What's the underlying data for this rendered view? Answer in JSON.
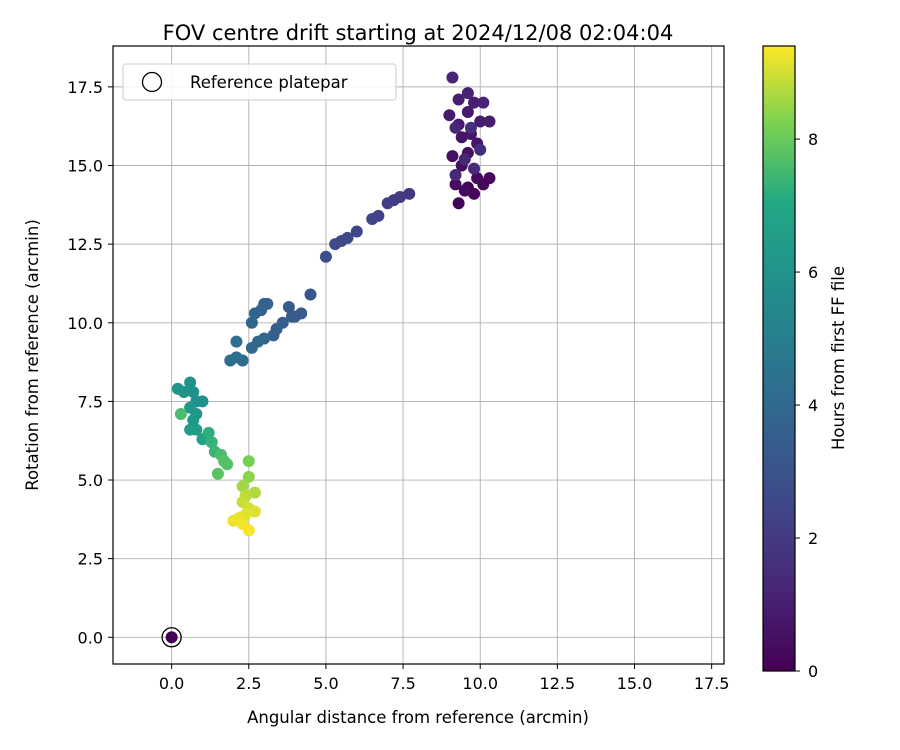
{
  "chart_data": {
    "type": "scatter",
    "title": "FOV centre drift starting at 2024/12/08 02:04:04",
    "xlabel": "Angular distance from reference (arcmin)",
    "ylabel": "Rotation from reference (arcmin)",
    "xlim": [
      -1.9,
      17.9
    ],
    "ylim": [
      -0.85,
      18.8
    ],
    "xticks": [
      0.0,
      2.5,
      5.0,
      7.5,
      10.0,
      12.5,
      15.0,
      17.5
    ],
    "xtick_labels": [
      "0.0",
      "2.5",
      "5.0",
      "7.5",
      "10.0",
      "12.5",
      "15.0",
      "17.5"
    ],
    "yticks": [
      0.0,
      2.5,
      5.0,
      7.5,
      10.0,
      12.5,
      15.0,
      17.5
    ],
    "ytick_labels": [
      "0.0",
      "2.5",
      "5.0",
      "7.5",
      "10.0",
      "12.5",
      "15.0",
      "17.5"
    ],
    "grid": true,
    "legend": {
      "position": "top-left",
      "entries": [
        {
          "label": "Reference platepar",
          "marker": "open-circle"
        }
      ]
    },
    "colorbar": {
      "label": "Hours from first FF file",
      "colormap": "viridis",
      "range": [
        0,
        9.4
      ],
      "ticks": [
        0,
        2,
        4,
        6,
        8
      ],
      "tick_labels": [
        "0",
        "2",
        "4",
        "6",
        "8"
      ]
    },
    "reference_point": {
      "x": 0.0,
      "y": 0.0,
      "hours": 0.0
    },
    "points": [
      {
        "x": 9.6,
        "y": 14.3,
        "h": 0.05
      },
      {
        "x": 9.3,
        "y": 13.8,
        "h": 0.1
      },
      {
        "x": 9.8,
        "y": 14.1,
        "h": 0.15
      },
      {
        "x": 10.1,
        "y": 14.4,
        "h": 0.2
      },
      {
        "x": 10.3,
        "y": 14.6,
        "h": 0.25
      },
      {
        "x": 9.9,
        "y": 14.6,
        "h": 0.3
      },
      {
        "x": 9.5,
        "y": 14.2,
        "h": 0.35
      },
      {
        "x": 9.2,
        "y": 14.4,
        "h": 0.4
      },
      {
        "x": 9.4,
        "y": 15.0,
        "h": 0.45
      },
      {
        "x": 9.1,
        "y": 15.3,
        "h": 0.5
      },
      {
        "x": 9.6,
        "y": 15.4,
        "h": 0.55
      },
      {
        "x": 9.4,
        "y": 15.9,
        "h": 0.6
      },
      {
        "x": 9.9,
        "y": 15.7,
        "h": 0.65
      },
      {
        "x": 9.7,
        "y": 16.0,
        "h": 0.7
      },
      {
        "x": 9.3,
        "y": 16.3,
        "h": 0.75
      },
      {
        "x": 9.0,
        "y": 16.6,
        "h": 0.8
      },
      {
        "x": 9.6,
        "y": 16.7,
        "h": 0.85
      },
      {
        "x": 10.0,
        "y": 16.4,
        "h": 0.9
      },
      {
        "x": 10.3,
        "y": 16.4,
        "h": 0.95
      },
      {
        "x": 9.8,
        "y": 17.0,
        "h": 1.0
      },
      {
        "x": 9.3,
        "y": 17.1,
        "h": 1.05
      },
      {
        "x": 9.6,
        "y": 17.3,
        "h": 1.1
      },
      {
        "x": 10.1,
        "y": 17.0,
        "h": 1.15
      },
      {
        "x": 9.1,
        "y": 17.8,
        "h": 1.2
      },
      {
        "x": 9.2,
        "y": 16.2,
        "h": 1.25
      },
      {
        "x": 9.5,
        "y": 15.2,
        "h": 1.3
      },
      {
        "x": 9.2,
        "y": 14.7,
        "h": 1.35
      },
      {
        "x": 9.8,
        "y": 14.9,
        "h": 1.4
      },
      {
        "x": 10.0,
        "y": 15.5,
        "h": 1.5
      },
      {
        "x": 9.7,
        "y": 16.2,
        "h": 1.55
      },
      {
        "x": 7.7,
        "y": 14.1,
        "h": 1.9
      },
      {
        "x": 7.4,
        "y": 14.0,
        "h": 2.0
      },
      {
        "x": 7.2,
        "y": 13.9,
        "h": 2.1
      },
      {
        "x": 7.0,
        "y": 13.8,
        "h": 2.15
      },
      {
        "x": 6.7,
        "y": 13.4,
        "h": 2.3
      },
      {
        "x": 6.5,
        "y": 13.3,
        "h": 2.35
      },
      {
        "x": 6.0,
        "y": 12.9,
        "h": 2.5
      },
      {
        "x": 5.7,
        "y": 12.7,
        "h": 2.6
      },
      {
        "x": 5.5,
        "y": 12.6,
        "h": 2.65
      },
      {
        "x": 5.3,
        "y": 12.5,
        "h": 2.7
      },
      {
        "x": 5.0,
        "y": 12.1,
        "h": 2.85
      },
      {
        "x": 4.5,
        "y": 10.9,
        "h": 3.1
      },
      {
        "x": 4.2,
        "y": 10.3,
        "h": 3.25
      },
      {
        "x": 4.0,
        "y": 10.2,
        "h": 3.3
      },
      {
        "x": 3.8,
        "y": 10.5,
        "h": 3.35
      },
      {
        "x": 3.9,
        "y": 10.2,
        "h": 3.4
      },
      {
        "x": 3.6,
        "y": 10.0,
        "h": 3.45
      },
      {
        "x": 3.4,
        "y": 9.8,
        "h": 3.5
      },
      {
        "x": 3.3,
        "y": 9.6,
        "h": 3.55
      },
      {
        "x": 3.1,
        "y": 10.6,
        "h": 3.65
      },
      {
        "x": 3.0,
        "y": 10.6,
        "h": 3.7
      },
      {
        "x": 2.9,
        "y": 10.4,
        "h": 3.75
      },
      {
        "x": 2.7,
        "y": 10.3,
        "h": 3.8
      },
      {
        "x": 2.6,
        "y": 10.0,
        "h": 3.85
      },
      {
        "x": 3.0,
        "y": 9.5,
        "h": 3.9
      },
      {
        "x": 2.8,
        "y": 9.4,
        "h": 3.95
      },
      {
        "x": 2.6,
        "y": 9.2,
        "h": 4.0
      },
      {
        "x": 2.3,
        "y": 8.8,
        "h": 4.1
      },
      {
        "x": 2.1,
        "y": 8.9,
        "h": 4.15
      },
      {
        "x": 1.9,
        "y": 8.8,
        "h": 4.2
      },
      {
        "x": 2.1,
        "y": 9.4,
        "h": 4.25
      },
      {
        "x": 0.8,
        "y": 7.5,
        "h": 5.8
      },
      {
        "x": 1.0,
        "y": 7.5,
        "h": 5.85
      },
      {
        "x": 0.7,
        "y": 7.8,
        "h": 5.9
      },
      {
        "x": 0.6,
        "y": 8.1,
        "h": 5.95
      },
      {
        "x": 0.4,
        "y": 7.8,
        "h": 6.0
      },
      {
        "x": 0.2,
        "y": 7.9,
        "h": 6.1
      },
      {
        "x": 0.6,
        "y": 7.3,
        "h": 6.15
      },
      {
        "x": 0.8,
        "y": 7.1,
        "h": 6.2
      },
      {
        "x": 0.7,
        "y": 6.9,
        "h": 6.3
      },
      {
        "x": 0.6,
        "y": 6.6,
        "h": 6.4
      },
      {
        "x": 0.8,
        "y": 6.6,
        "h": 6.45
      },
      {
        "x": 1.0,
        "y": 6.3,
        "h": 6.7
      },
      {
        "x": 0.3,
        "y": 7.1,
        "h": 7.6
      },
      {
        "x": 1.2,
        "y": 6.5,
        "h": 7.2
      },
      {
        "x": 1.3,
        "y": 6.2,
        "h": 7.3
      },
      {
        "x": 1.4,
        "y": 5.9,
        "h": 7.4
      },
      {
        "x": 1.6,
        "y": 5.8,
        "h": 7.6
      },
      {
        "x": 1.7,
        "y": 5.6,
        "h": 7.7
      },
      {
        "x": 1.8,
        "y": 5.5,
        "h": 7.75
      },
      {
        "x": 1.5,
        "y": 5.2,
        "h": 7.8
      },
      {
        "x": 2.5,
        "y": 5.6,
        "h": 8.2
      },
      {
        "x": 2.5,
        "y": 5.1,
        "h": 8.4
      },
      {
        "x": 2.3,
        "y": 4.8,
        "h": 8.6
      },
      {
        "x": 2.7,
        "y": 4.6,
        "h": 8.7
      },
      {
        "x": 2.4,
        "y": 4.5,
        "h": 8.8
      },
      {
        "x": 2.3,
        "y": 4.3,
        "h": 8.9
      },
      {
        "x": 2.5,
        "y": 4.1,
        "h": 9.0
      },
      {
        "x": 2.7,
        "y": 4.0,
        "h": 9.1
      },
      {
        "x": 2.4,
        "y": 3.9,
        "h": 9.15
      },
      {
        "x": 2.2,
        "y": 3.8,
        "h": 9.2
      },
      {
        "x": 2.0,
        "y": 3.7,
        "h": 9.25
      },
      {
        "x": 2.3,
        "y": 3.6,
        "h": 9.3
      },
      {
        "x": 2.5,
        "y": 3.4,
        "h": 9.35
      }
    ]
  }
}
